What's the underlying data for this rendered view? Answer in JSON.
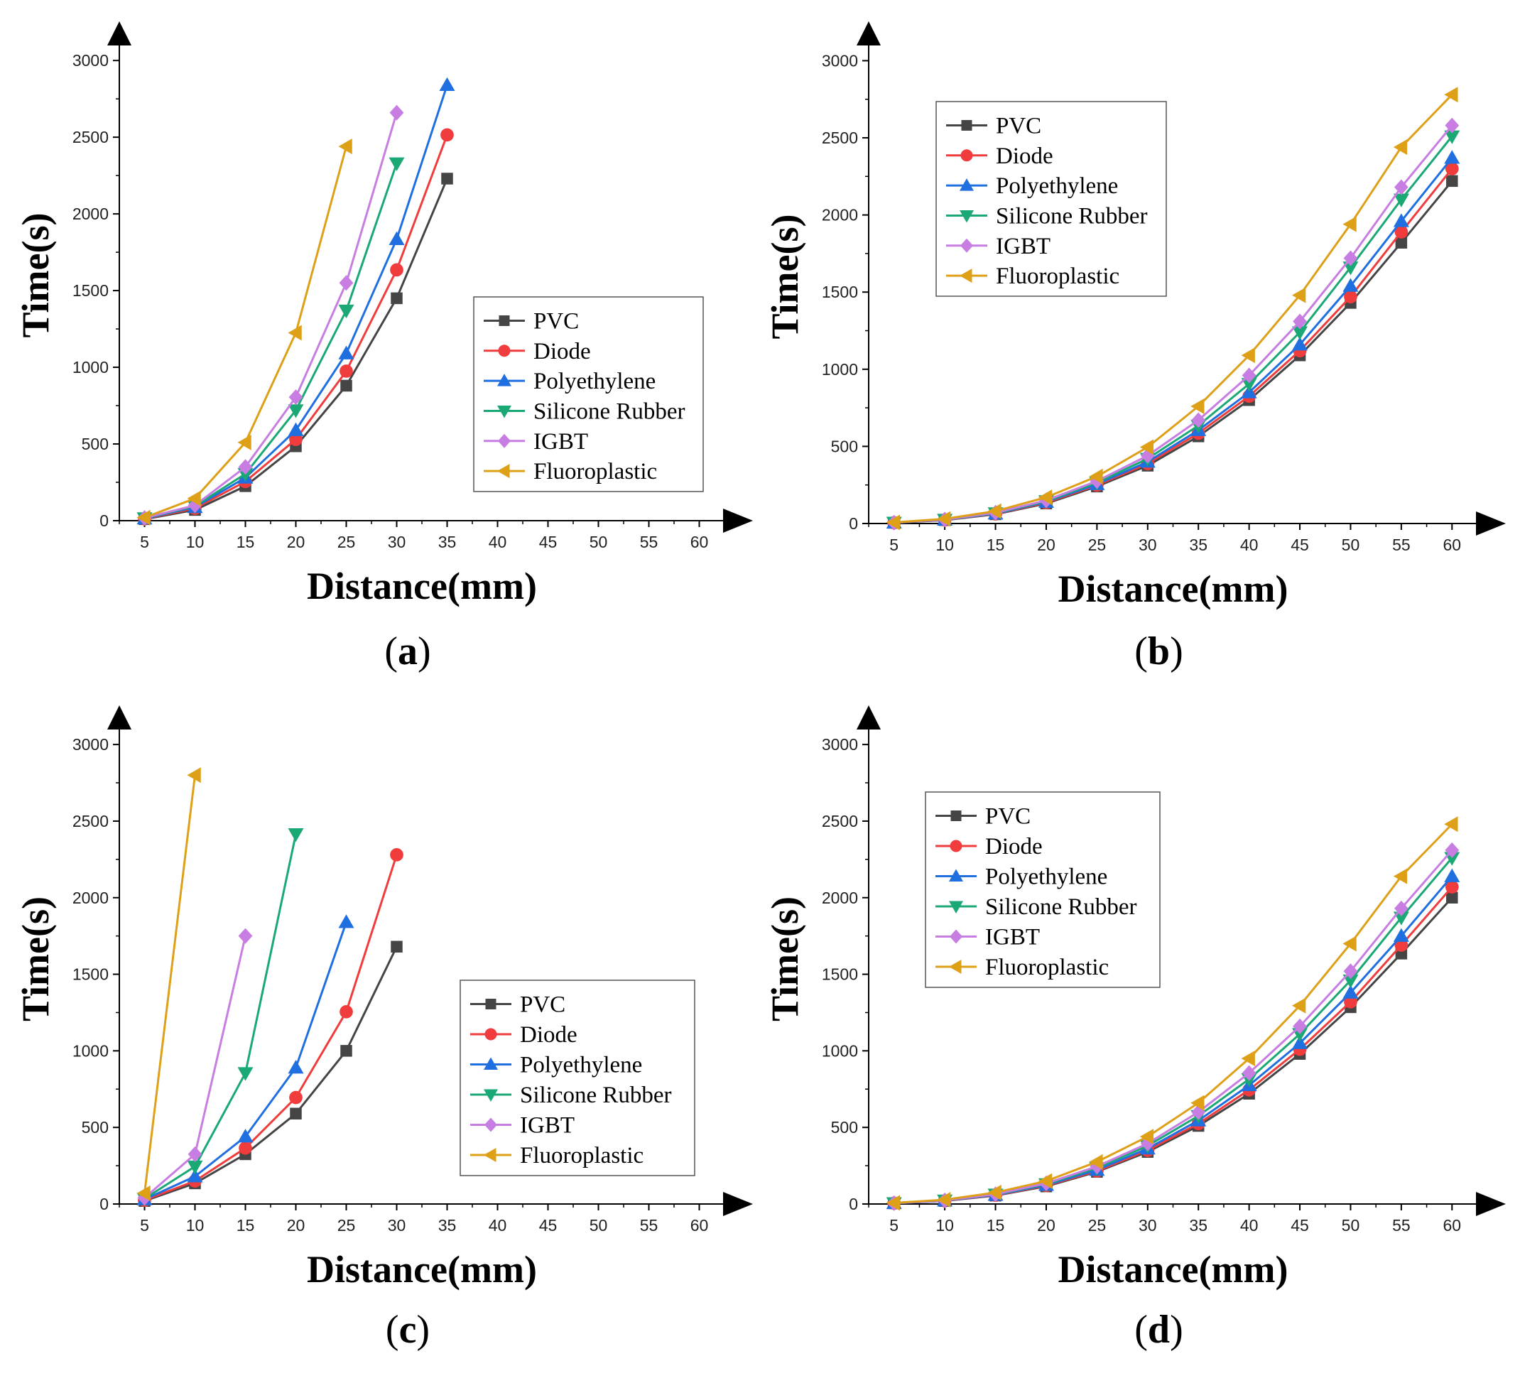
{
  "figure": {
    "series_colors": {
      "PVC": "#454545",
      "Diode": "#f03c3c",
      "Polyethylene": "#1f6fe0",
      "Silicone Rubber": "#1aa874",
      "IGBT": "#c87de3",
      "Fluoroplastic": "#dda017"
    },
    "series_markers": {
      "PVC": "square",
      "Diode": "circle",
      "Polyethylene": "triangle-up",
      "Silicone Rubber": "triangle-down",
      "IGBT": "diamond",
      "Fluoroplastic": "triangle-left"
    }
  },
  "chart_data": [
    {
      "panel_label": "a",
      "type": "line",
      "xlabel": "Distance(mm)",
      "ylabel": "Time(s)",
      "xlim": [
        2.5,
        62.5
      ],
      "ylim": [
        0,
        3200
      ],
      "x_ticks": [
        5,
        10,
        15,
        20,
        25,
        30,
        35,
        40,
        45,
        50,
        55,
        60
      ],
      "y_ticks": [
        0,
        500,
        1000,
        1500,
        2000,
        2500,
        3000
      ],
      "legend_position": "center-right",
      "series": [
        {
          "name": "PVC",
          "x": [
            5,
            10,
            15,
            20,
            25,
            30,
            35
          ],
          "y": [
            10,
            70,
            225,
            485,
            880,
            1450,
            2230
          ]
        },
        {
          "name": "Diode",
          "x": [
            5,
            10,
            15,
            20,
            25,
            30,
            35
          ],
          "y": [
            12,
            80,
            255,
            530,
            975,
            1635,
            2515
          ]
        },
        {
          "name": "Polyethylene",
          "x": [
            5,
            10,
            15,
            20,
            25,
            30,
            35
          ],
          "y": [
            14,
            88,
            280,
            590,
            1090,
            1835,
            2840
          ]
        },
        {
          "name": "Silicone Rubber",
          "x": [
            5,
            10,
            15,
            20,
            25,
            30
          ],
          "y": [
            16,
            95,
            305,
            720,
            1370,
            2330
          ]
        },
        {
          "name": "IGBT",
          "x": [
            5,
            10,
            15,
            20,
            25,
            30
          ],
          "y": [
            18,
            100,
            350,
            805,
            1550,
            2660
          ]
        },
        {
          "name": "Fluoroplastic",
          "x": [
            5,
            10,
            15,
            20,
            25
          ],
          "y": [
            20,
            145,
            510,
            1225,
            2440
          ]
        }
      ]
    },
    {
      "panel_label": "b",
      "type": "line",
      "xlabel": "Distance(mm)",
      "ylabel": "Time(s)",
      "xlim": [
        2.5,
        62.5
      ],
      "ylim": [
        0,
        3200
      ],
      "x_ticks": [
        5,
        10,
        15,
        20,
        25,
        30,
        35,
        40,
        45,
        50,
        55,
        60
      ],
      "y_ticks": [
        0,
        500,
        1000,
        1500,
        2000,
        2500,
        3000
      ],
      "legend_position": "top-left",
      "series": [
        {
          "name": "PVC",
          "x": [
            5,
            10,
            15,
            20,
            25,
            30,
            35,
            40,
            45,
            50,
            55,
            60
          ],
          "y": [
            5,
            22,
            60,
            130,
            240,
            375,
            565,
            800,
            1090,
            1430,
            1820,
            2220
          ]
        },
        {
          "name": "Diode",
          "x": [
            5,
            10,
            15,
            20,
            25,
            30,
            35,
            40,
            45,
            50,
            55,
            60
          ],
          "y": [
            5,
            23,
            62,
            135,
            248,
            388,
            585,
            825,
            1120,
            1470,
            1890,
            2300
          ]
        },
        {
          "name": "Polyethylene",
          "x": [
            5,
            10,
            15,
            20,
            25,
            30,
            35,
            40,
            45,
            50,
            55,
            60
          ],
          "y": [
            5,
            24,
            64,
            140,
            255,
            400,
            605,
            850,
            1160,
            1540,
            1960,
            2370
          ]
        },
        {
          "name": "Silicone Rubber",
          "x": [
            5,
            10,
            15,
            20,
            25,
            30,
            35,
            40,
            45,
            50,
            55,
            60
          ],
          "y": [
            6,
            25,
            67,
            145,
            265,
            420,
            635,
            905,
            1240,
            1660,
            2100,
            2510
          ]
        },
        {
          "name": "IGBT",
          "x": [
            5,
            10,
            15,
            20,
            25,
            30,
            35,
            40,
            45,
            50,
            55,
            60
          ],
          "y": [
            6,
            26,
            70,
            150,
            275,
            440,
            670,
            960,
            1310,
            1720,
            2180,
            2580
          ]
        },
        {
          "name": "Fluoroplastic",
          "x": [
            5,
            10,
            15,
            20,
            25,
            30,
            35,
            40,
            45,
            50,
            55,
            60
          ],
          "y": [
            7,
            30,
            80,
            170,
            305,
            495,
            760,
            1090,
            1480,
            1940,
            2440,
            2780
          ]
        }
      ]
    },
    {
      "panel_label": "c",
      "type": "line",
      "xlabel": "Distance(mm)",
      "ylabel": "Time(s)",
      "xlim": [
        2.5,
        62.5
      ],
      "ylim": [
        0,
        3200
      ],
      "x_ticks": [
        5,
        10,
        15,
        20,
        25,
        30,
        35,
        40,
        45,
        50,
        55,
        60
      ],
      "y_ticks": [
        0,
        500,
        1000,
        1500,
        2000,
        2500,
        3000
      ],
      "legend_position": "center-right",
      "series": [
        {
          "name": "PVC",
          "x": [
            5,
            10,
            15,
            20,
            25,
            30
          ],
          "y": [
            20,
            135,
            325,
            590,
            1000,
            1680
          ]
        },
        {
          "name": "Diode",
          "x": [
            5,
            10,
            15,
            20,
            25,
            30
          ],
          "y": [
            25,
            150,
            365,
            695,
            1255,
            2280
          ]
        },
        {
          "name": "Polyethylene",
          "x": [
            5,
            10,
            15,
            20,
            25
          ],
          "y": [
            30,
            180,
            440,
            890,
            1840
          ]
        },
        {
          "name": "Silicone Rubber",
          "x": [
            5,
            10,
            15,
            20
          ],
          "y": [
            35,
            245,
            855,
            2415
          ]
        },
        {
          "name": "IGBT",
          "x": [
            5,
            10,
            15
          ],
          "y": [
            40,
            325,
            1750
          ]
        },
        {
          "name": "Fluoroplastic",
          "x": [
            5,
            10
          ],
          "y": [
            70,
            2800
          ]
        }
      ]
    },
    {
      "panel_label": "d",
      "type": "line",
      "xlabel": "Distance(mm)",
      "ylabel": "Time(s)",
      "xlim": [
        2.5,
        62.5
      ],
      "ylim": [
        0,
        3200
      ],
      "x_ticks": [
        5,
        10,
        15,
        20,
        25,
        30,
        35,
        40,
        45,
        50,
        55,
        60
      ],
      "y_ticks": [
        0,
        500,
        1000,
        1500,
        2000,
        2500,
        3000
      ],
      "legend_position": "top-left",
      "series": [
        {
          "name": "PVC",
          "x": [
            5,
            10,
            15,
            20,
            25,
            30,
            35,
            40,
            45,
            50,
            55,
            60
          ],
          "y": [
            5,
            20,
            55,
            115,
            210,
            340,
            510,
            720,
            980,
            1285,
            1635,
            2000
          ]
        },
        {
          "name": "Diode",
          "x": [
            5,
            10,
            15,
            20,
            25,
            30,
            35,
            40,
            45,
            50,
            55,
            60
          ],
          "y": [
            5,
            21,
            57,
            120,
            215,
            350,
            525,
            745,
            1010,
            1320,
            1690,
            2070
          ]
        },
        {
          "name": "Polyethylene",
          "x": [
            5,
            10,
            15,
            20,
            25,
            30,
            35,
            40,
            45,
            50,
            55,
            60
          ],
          "y": [
            5,
            22,
            59,
            124,
            222,
            362,
            545,
            775,
            1050,
            1380,
            1750,
            2140
          ]
        },
        {
          "name": "Silicone Rubber",
          "x": [
            5,
            10,
            15,
            20,
            25,
            30,
            35,
            40,
            45,
            50,
            55,
            60
          ],
          "y": [
            6,
            23,
            62,
            130,
            235,
            380,
            575,
            815,
            1110,
            1460,
            1870,
            2260
          ]
        },
        {
          "name": "IGBT",
          "x": [
            5,
            10,
            15,
            20,
            25,
            30,
            35,
            40,
            45,
            50,
            55,
            60
          ],
          "y": [
            6,
            24,
            64,
            135,
            245,
            395,
            600,
            855,
            1160,
            1520,
            1930,
            2310
          ]
        },
        {
          "name": "Fluoroplastic",
          "x": [
            5,
            10,
            15,
            20,
            25,
            30,
            35,
            40,
            45,
            50,
            55,
            60
          ],
          "y": [
            7,
            28,
            75,
            150,
            275,
            440,
            660,
            950,
            1295,
            1700,
            2140,
            2480
          ]
        }
      ]
    }
  ]
}
